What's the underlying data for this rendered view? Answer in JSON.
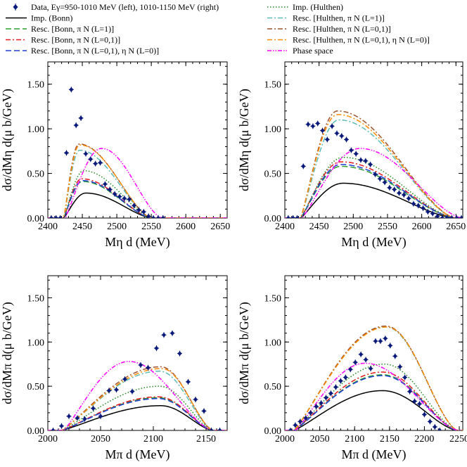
{
  "legend": {
    "data_label": "Data, Eγ=950-1010 MeV (left), 1010-1150 MeV (right)",
    "entries": [
      {
        "key": "imp_bonn",
        "label": "Imp. (Bonn)",
        "color": "#000000",
        "dash": "solid"
      },
      {
        "key": "resc_bonn_L1",
        "label": "Resc. [Bonn, π N (L=1)]",
        "color": "#2ca02c",
        "dash": "longdash"
      },
      {
        "key": "resc_bonn_L01",
        "label": "Resc. [Bonn, π N (L=0,1)]",
        "color": "#e41a1c",
        "dash": "dashdot"
      },
      {
        "key": "resc_bonn_L01_eta",
        "label": "Resc. [Bonn, π N (L=0,1), η N (L=0)]",
        "color": "#1f3fd6",
        "dash": "longdash"
      },
      {
        "key": "imp_hulthen",
        "label": "Imp. (Hulthen)",
        "color": "#228b22",
        "dash": "dotted"
      },
      {
        "key": "resc_hulthen_L1",
        "label": "Resc. [Hulthen, π N (L=1)]",
        "color": "#5bbcb5",
        "dash": "dashdot"
      },
      {
        "key": "resc_hulthen_L01",
        "label": "Resc. [Hulthen, π N (L=0,1)]",
        "color": "#a0522d",
        "dash": "dashdot"
      },
      {
        "key": "resc_hulthen_L01_eta",
        "label": "Resc. [Hulthen, π N (L=0,1), η N (L=0)]",
        "color": "#ff8c00",
        "dash": "dashdot"
      },
      {
        "key": "phase_space",
        "label": "Phase space",
        "color": "#ff00ff",
        "dash": "dashdotdot"
      }
    ]
  },
  "chart_data": [
    {
      "type": "line",
      "panel": "top-left",
      "xlabel": "Mη d (MeV)",
      "ylabel": "dσ/dMη d(μ b/GeV)",
      "xlim": [
        2400,
        2660
      ],
      "ylim": [
        0,
        1.75
      ],
      "xticks": [
        "2400",
        "2450",
        "2500",
        "2550",
        "2600",
        "2650"
      ],
      "yticks": [
        "0.00",
        "0.50",
        "1.00",
        "1.50"
      ],
      "data": {
        "x": [
          2405,
          2412,
          2418,
          2427,
          2434,
          2441,
          2448,
          2455,
          2462,
          2469,
          2476,
          2483,
          2490,
          2497,
          2504,
          2511,
          2518,
          2525,
          2532,
          2539,
          2546,
          2553,
          2560,
          2567
        ],
        "y": [
          0,
          0,
          0,
          0.73,
          1.44,
          1.04,
          1.12,
          0.72,
          0.66,
          0.61,
          0.62,
          0.38,
          0.32,
          0.27,
          0.24,
          0.22,
          0.21,
          0.14,
          0.09,
          0.07,
          0.02,
          0,
          0,
          0
        ]
      },
      "curves": {
        "imp_bonn": {
          "start": 2423,
          "peak_x": 2455,
          "peak_y": 0.28,
          "end": 2552
        },
        "resc_bonn_L1": {
          "start": 2423,
          "peak_x": 2450,
          "peak_y": 0.41,
          "end": 2551
        },
        "resc_bonn_L01": {
          "start": 2423,
          "peak_x": 2449,
          "peak_y": 0.44,
          "end": 2551
        },
        "resc_bonn_L01_eta": {
          "start": 2423,
          "peak_x": 2450,
          "peak_y": 0.42,
          "end": 2551
        },
        "imp_hulthen": {
          "start": 2423,
          "peak_x": 2452,
          "peak_y": 0.53,
          "end": 2552
        },
        "resc_hulthen_L1": {
          "start": 2423,
          "peak_x": 2446,
          "peak_y": 0.76,
          "end": 2551
        },
        "resc_hulthen_L01": {
          "start": 2423,
          "peak_x": 2445,
          "peak_y": 0.83,
          "end": 2551
        },
        "resc_hulthen_L01_eta": {
          "start": 2423,
          "peak_x": 2446,
          "peak_y": 0.82,
          "end": 2551
        },
        "phase_space": {
          "start": 2425,
          "peak_x": 2478,
          "peak_y": 0.78,
          "end": 2566
        }
      }
    },
    {
      "type": "line",
      "panel": "top-right",
      "xlabel": "Mη d (MeV)",
      "ylabel": "dσ/dMη d(μ b/GeV)",
      "xlim": [
        2400,
        2660
      ],
      "ylim": [
        0,
        1.75
      ],
      "xticks": [
        "2400",
        "2450",
        "2500",
        "2550",
        "2600",
        "2650"
      ],
      "yticks": [
        "0.00",
        "0.50",
        "1.00",
        "1.50"
      ],
      "data": {
        "x": [
          2405,
          2412,
          2418,
          2427,
          2434,
          2441,
          2448,
          2455,
          2462,
          2469,
          2476,
          2483,
          2490,
          2497,
          2504,
          2511,
          2518,
          2525,
          2532,
          2539,
          2546,
          2553,
          2560,
          2567,
          2574,
          2581,
          2588,
          2595,
          2602,
          2609,
          2616,
          2623,
          2630,
          2637,
          2644,
          2651,
          2658
        ],
        "y": [
          0,
          0,
          0,
          0.58,
          1.05,
          1.03,
          1.06,
          0.98,
          0.88,
          1.03,
          0.95,
          0.92,
          0.88,
          0.76,
          0.72,
          0.65,
          0.64,
          0.6,
          0.49,
          0.44,
          0.4,
          0.34,
          0.32,
          0.28,
          0.26,
          0.22,
          0.16,
          0.14,
          0.11,
          0.07,
          0.05,
          0.02,
          0,
          0,
          0,
          0,
          0
        ]
      },
      "curves": {
        "imp_bonn": {
          "start": 2423,
          "peak_x": 2485,
          "peak_y": 0.39,
          "end": 2650
        },
        "resc_bonn_L1": {
          "start": 2423,
          "peak_x": 2482,
          "peak_y": 0.58,
          "end": 2650
        },
        "resc_bonn_L01": {
          "start": 2423,
          "peak_x": 2482,
          "peak_y": 0.63,
          "end": 2650
        },
        "resc_bonn_L01_eta": {
          "start": 2423,
          "peak_x": 2482,
          "peak_y": 0.6,
          "end": 2650
        },
        "imp_hulthen": {
          "start": 2423,
          "peak_x": 2485,
          "peak_y": 0.68,
          "end": 2650
        },
        "resc_hulthen_L1": {
          "start": 2423,
          "peak_x": 2479,
          "peak_y": 1.1,
          "end": 2650
        },
        "resc_hulthen_L01": {
          "start": 2423,
          "peak_x": 2477,
          "peak_y": 1.2,
          "end": 2650
        },
        "resc_hulthen_L01_eta": {
          "start": 2423,
          "peak_x": 2477,
          "peak_y": 1.16,
          "end": 2650
        },
        "phase_space": {
          "start": 2425,
          "peak_x": 2510,
          "peak_y": 0.78,
          "end": 2660
        }
      }
    },
    {
      "type": "line",
      "panel": "bottom-left",
      "xlabel": "Mπ d (MeV)",
      "ylabel": "dσ/dMπ d(μ b/GeV)",
      "xlim": [
        2000,
        2170
      ],
      "ylim": [
        0,
        1.75
      ],
      "xticks": [
        "2000",
        "2050",
        "2100",
        "2150"
      ],
      "yticks": [
        "0.00",
        "0.50",
        "1.00",
        "1.50"
      ],
      "data": {
        "x": [
          2005,
          2013,
          2020,
          2028,
          2035,
          2043,
          2050,
          2058,
          2065,
          2073,
          2080,
          2088,
          2095,
          2103,
          2110,
          2118,
          2125,
          2133,
          2140,
          2148,
          2155,
          2163
        ],
        "y": [
          0,
          0.05,
          0.16,
          0.14,
          0.13,
          0.25,
          0.16,
          0.45,
          0.46,
          0.58,
          0.44,
          0.74,
          0.71,
          0.93,
          1.08,
          1.1,
          0.87,
          0.55,
          0.35,
          0.22,
          0,
          0
        ]
      },
      "curves": {
        "imp_bonn": {
          "start": 2013,
          "peak_x": 2107,
          "peak_y": 0.28,
          "end": 2157
        },
        "resc_bonn_L1": {
          "start": 2013,
          "peak_x": 2105,
          "peak_y": 0.37,
          "end": 2157
        },
        "resc_bonn_L01": {
          "start": 2013,
          "peak_x": 2105,
          "peak_y": 0.38,
          "end": 2157
        },
        "resc_bonn_L01_eta": {
          "start": 2013,
          "peak_x": 2105,
          "peak_y": 0.36,
          "end": 2157
        },
        "imp_hulthen": {
          "start": 2013,
          "peak_x": 2106,
          "peak_y": 0.5,
          "end": 2157
        },
        "resc_hulthen_L1": {
          "start": 2013,
          "peak_x": 2106,
          "peak_y": 0.67,
          "end": 2157
        },
        "resc_hulthen_L01": {
          "start": 2013,
          "peak_x": 2107,
          "peak_y": 0.72,
          "end": 2157
        },
        "resc_hulthen_L01_eta": {
          "start": 2013,
          "peak_x": 2108,
          "peak_y": 0.7,
          "end": 2157
        },
        "phase_space": {
          "start": 2015,
          "peak_x": 2077,
          "peak_y": 0.78,
          "end": 2157
        }
      }
    },
    {
      "type": "line",
      "panel": "bottom-right",
      "xlabel": "Mπ d (MeV)",
      "ylabel": "dσ/dMπ d(μ b/GeV)",
      "xlim": [
        2000,
        2255
      ],
      "ylim": [
        0,
        1.75
      ],
      "xticks": [
        "2000",
        "2050",
        "2100",
        "2150",
        "2200",
        "2250"
      ],
      "yticks": [
        "0.00",
        "0.50",
        "1.00",
        "1.50"
      ],
      "data": {
        "x": [
          2008,
          2015,
          2022,
          2030,
          2037,
          2045,
          2052,
          2059,
          2066,
          2073,
          2080,
          2087,
          2094,
          2101,
          2109,
          2116,
          2123,
          2130,
          2137,
          2144,
          2151,
          2158,
          2165,
          2172,
          2179,
          2186,
          2193,
          2200,
          2208,
          2215,
          2222
        ],
        "y": [
          0,
          0.06,
          0.1,
          0.14,
          0.2,
          0.27,
          0.31,
          0.37,
          0.42,
          0.49,
          0.56,
          0.6,
          0.69,
          0.77,
          0.86,
          0.8,
          0.7,
          1.01,
          1.01,
          1.04,
          0.96,
          0.84,
          0.72,
          0.6,
          0.44,
          0.33,
          0.3,
          0.18,
          0.1,
          0.04,
          0
        ]
      },
      "curves": {
        "imp_bonn": {
          "start": 2013,
          "peak_x": 2140,
          "peak_y": 0.45,
          "end": 2248
        },
        "resc_bonn_L1": {
          "start": 2013,
          "peak_x": 2140,
          "peak_y": 0.63,
          "end": 2248
        },
        "resc_bonn_L01": {
          "start": 2013,
          "peak_x": 2140,
          "peak_y": 0.66,
          "end": 2248
        },
        "resc_bonn_L01_eta": {
          "start": 2013,
          "peak_x": 2140,
          "peak_y": 0.62,
          "end": 2248
        },
        "imp_hulthen": {
          "start": 2013,
          "peak_x": 2143,
          "peak_y": 0.75,
          "end": 2248
        },
        "resc_hulthen_L1": {
          "start": 2013,
          "peak_x": 2145,
          "peak_y": 1.17,
          "end": 2248
        },
        "resc_hulthen_L01": {
          "start": 2013,
          "peak_x": 2145,
          "peak_y": 1.18,
          "end": 2248
        },
        "resc_hulthen_L01_eta": {
          "start": 2013,
          "peak_x": 2146,
          "peak_y": 1.17,
          "end": 2248
        },
        "phase_space": {
          "start": 2015,
          "peak_x": 2115,
          "peak_y": 0.76,
          "end": 2250
        }
      }
    }
  ]
}
